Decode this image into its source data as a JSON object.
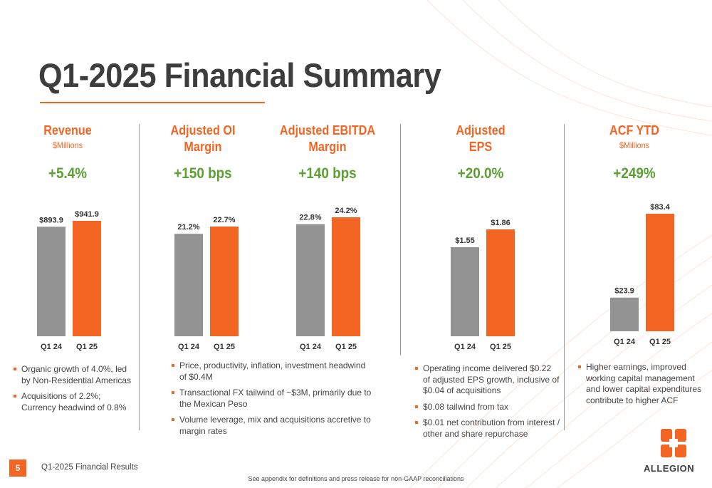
{
  "title": "Q1-2025 Financial Summary",
  "footer": {
    "page_number": "5",
    "doc_title": "Q1-2025 Financial Results",
    "footnote": "See appendix for definitions and press release for non-GAAP reconciliations"
  },
  "logo": {
    "text": "ALLEGION",
    "icon": "allegion-logo-icon"
  },
  "colors": {
    "accent": "#f26522",
    "prior": "#939393",
    "positive": "#5aa032"
  },
  "columns": [
    {
      "head": [
        "Revenue"
      ],
      "sub": "$Millions",
      "change": "+5.4%"
    },
    {
      "head": [
        "Adjusted OI",
        "Margin"
      ],
      "sub": "",
      "change": "+150 bps"
    },
    {
      "head": [
        "Adjusted EBITDA",
        "Margin"
      ],
      "sub": "",
      "change": "+140 bps"
    },
    {
      "head": [
        "Adjusted",
        "EPS"
      ],
      "sub": "",
      "change": "+20.0%"
    },
    {
      "head": [
        "ACF YTD"
      ],
      "sub": "$Millions",
      "change": "+249%"
    }
  ],
  "chart_data": [
    {
      "type": "bar",
      "title": "Revenue",
      "subtitle": "$Millions",
      "categories": [
        "Q1 24",
        "Q1 25"
      ],
      "values": [
        893.9,
        941.9
      ],
      "labels": [
        "$893.9",
        "$941.9"
      ]
    },
    {
      "type": "bar",
      "title": "Adjusted OI Margin",
      "categories": [
        "Q1 24",
        "Q1 25"
      ],
      "values": [
        21.2,
        22.7
      ],
      "labels": [
        "21.2%",
        "22.7%"
      ]
    },
    {
      "type": "bar",
      "title": "Adjusted EBITDA Margin",
      "categories": [
        "Q1 24",
        "Q1 25"
      ],
      "values": [
        22.8,
        24.2
      ],
      "labels": [
        "22.8%",
        "24.2%"
      ]
    },
    {
      "type": "bar",
      "title": "Adjusted EPS",
      "categories": [
        "Q1 24",
        "Q1 25"
      ],
      "values": [
        1.55,
        1.86
      ],
      "labels": [
        "$1.55",
        "$1.86"
      ]
    },
    {
      "type": "bar",
      "title": "ACF YTD",
      "subtitle": "$Millions",
      "categories": [
        "Q1 24",
        "Q1 25"
      ],
      "values": [
        23.9,
        83.4
      ],
      "labels": [
        "$23.9",
        "$83.4"
      ]
    }
  ],
  "bullets": {
    "revenue": [
      "Organic growth of 4.0%, led by Non-Residential Americas",
      "Acquisitions of 2.2%; Currency headwind of 0.8%"
    ],
    "margins": [
      "Price, productivity, inflation, investment headwind of $0.4M",
      "Transactional FX tailwind of ~$3M, primarily due to the Mexican Peso",
      "Volume leverage, mix and acquisitions accretive to margin rates"
    ],
    "eps": [
      "Operating income delivered $0.22 of adjusted EPS growth, inclusive of $0.04 of acquisitions",
      "$0.08 tailwind from tax",
      "$0.01 net contribution from interest / other and share repurchase"
    ],
    "acf": [
      "Higher earnings, improved working capital management and lower capital expenditures contribute to higher ACF"
    ]
  }
}
